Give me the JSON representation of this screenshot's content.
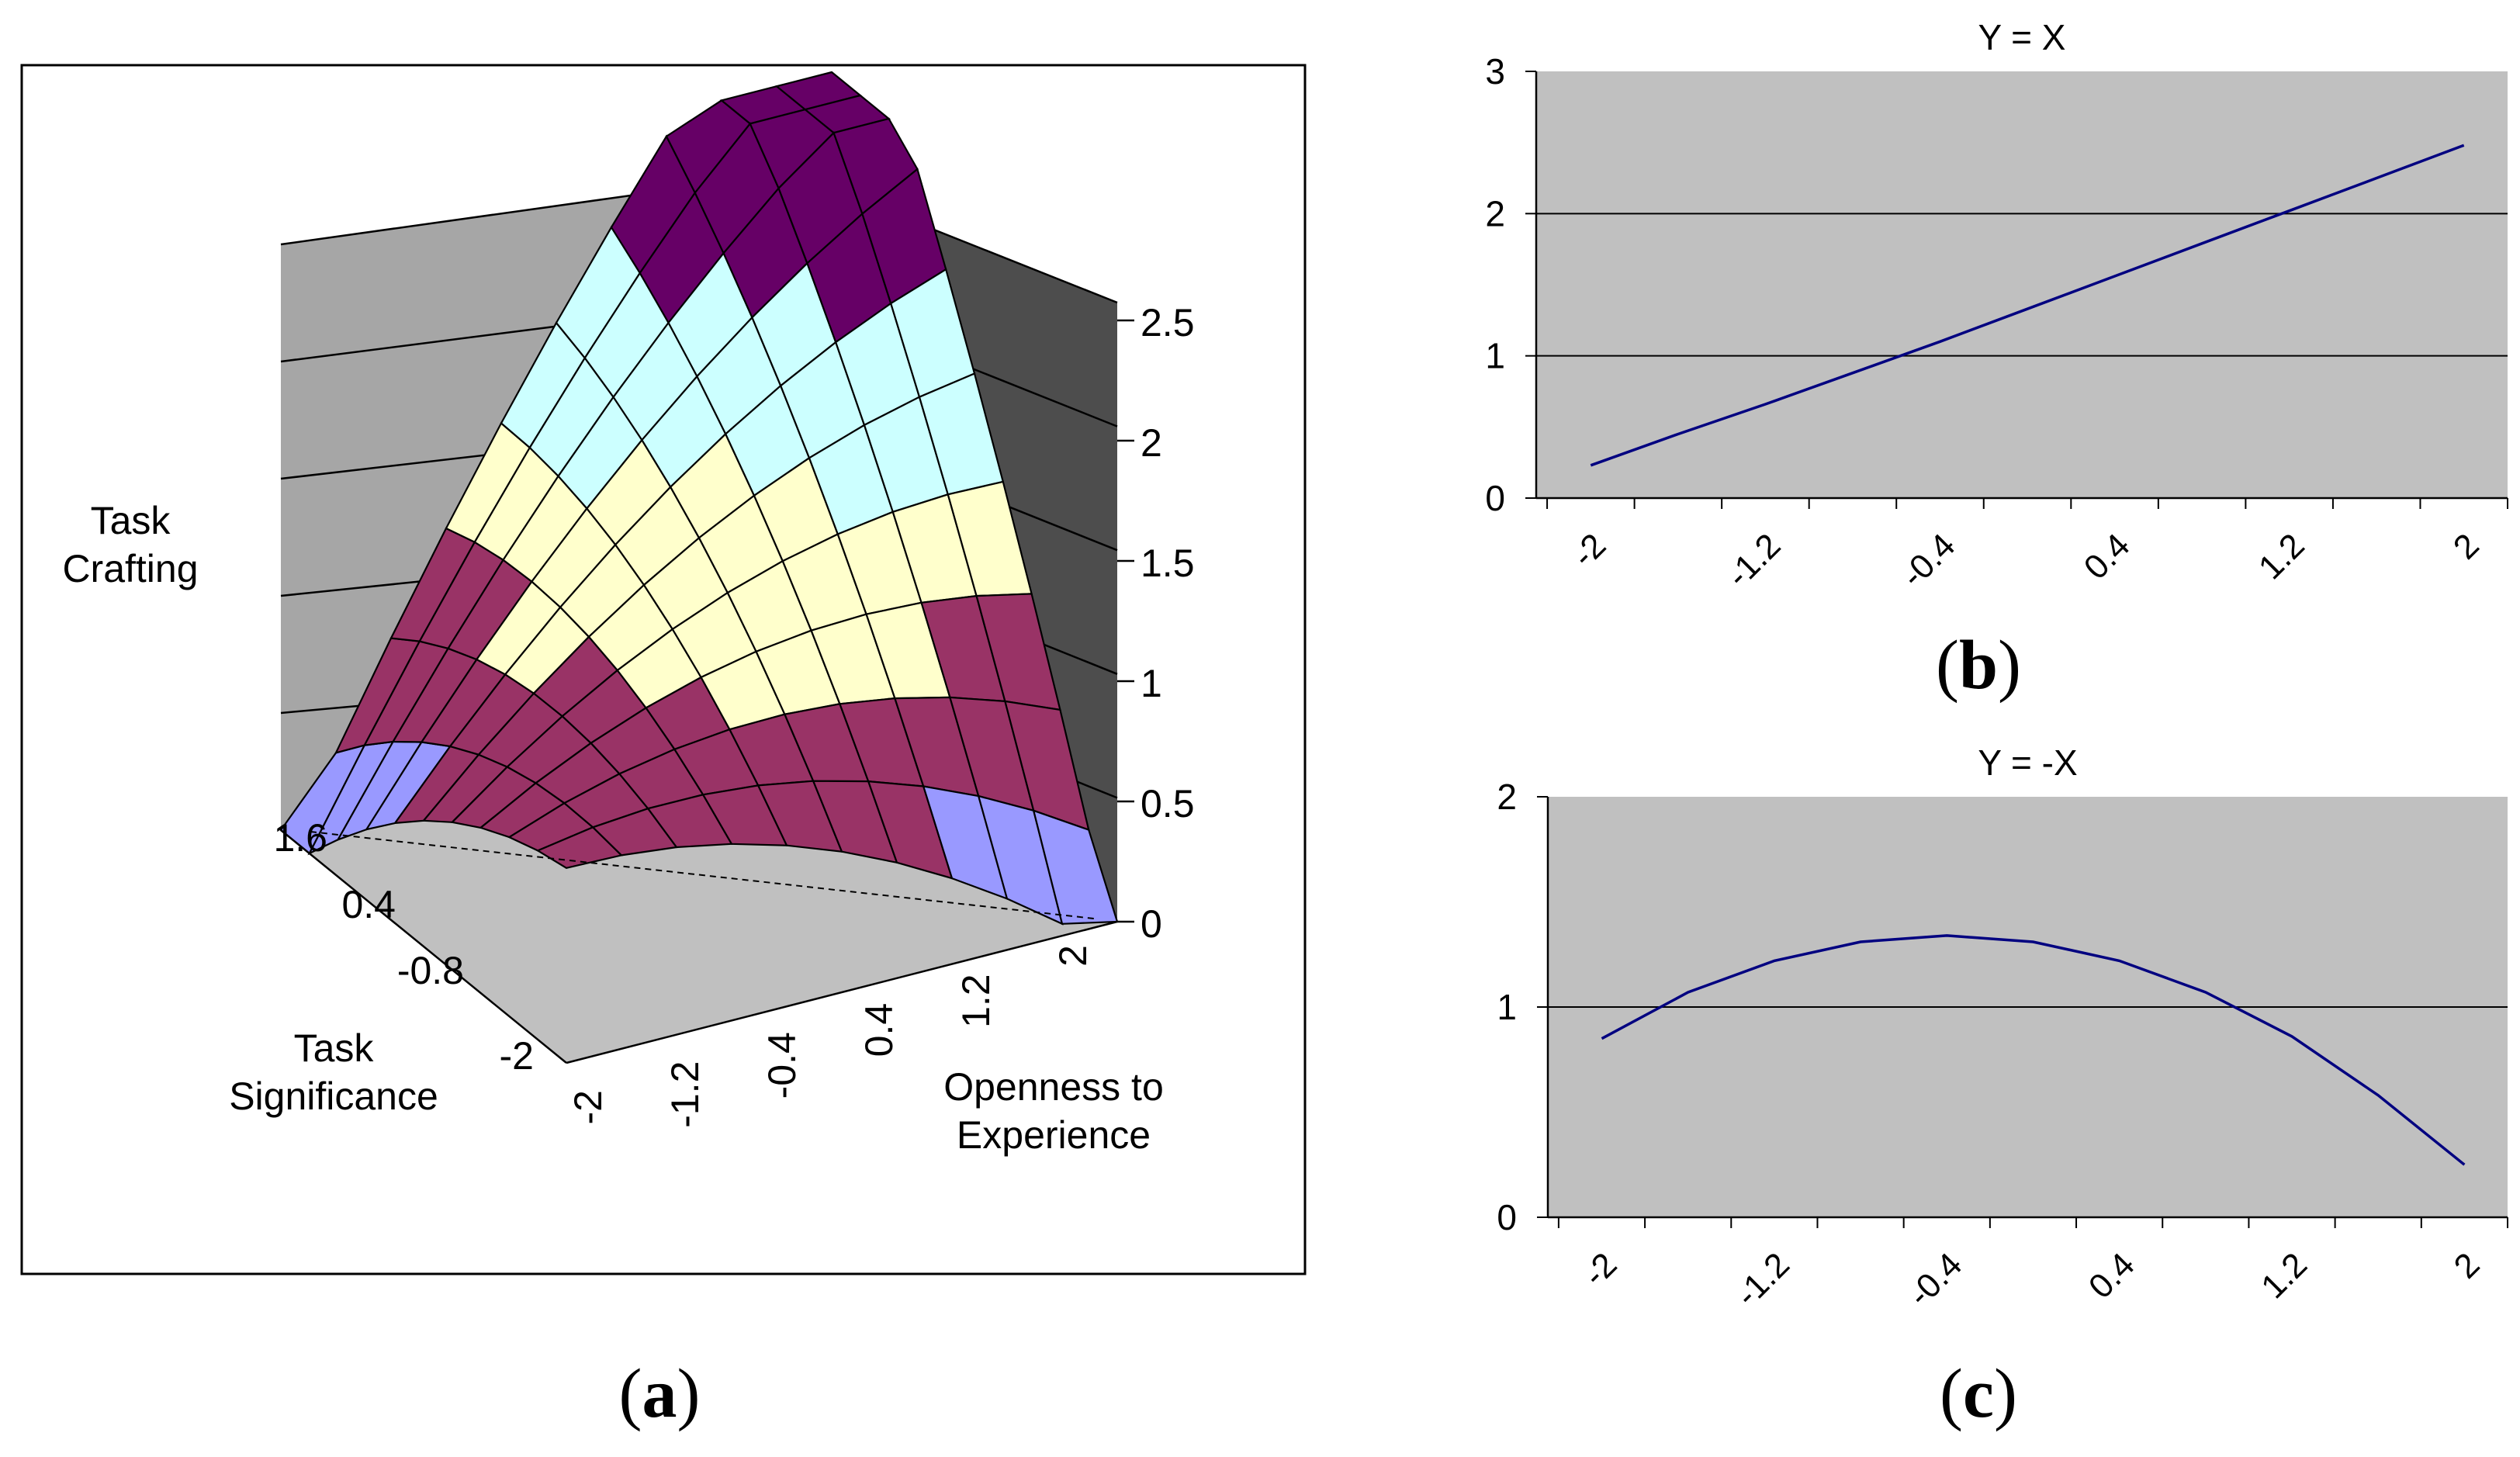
{
  "panels": {
    "a_label": "a",
    "b_label": "b",
    "c_label": "c"
  },
  "chart_data": [
    {
      "type": "surface",
      "id": "a",
      "title": "",
      "zlabel_lines": [
        "Task",
        "Crafting"
      ],
      "ylabel_lines": [
        "Task",
        "Significance"
      ],
      "xlabel_lines": [
        "Openness to",
        "Experience"
      ],
      "z_ticks": [
        "0",
        "0.5",
        "1",
        "1.5",
        "2",
        "2.5"
      ],
      "zlim": [
        0,
        2.5
      ],
      "x_ticks": [
        "-2",
        "-1.2",
        "-0.4",
        "0.4",
        "1.2",
        "2"
      ],
      "y_ticks": [
        "-2",
        "-0.8",
        "0.4",
        "1.6"
      ],
      "xlim": [
        -2,
        2
      ],
      "ylim": [
        -2,
        2
      ],
      "color_bands": [
        {
          "range": [
            0,
            0.5
          ],
          "color": "#9999ff"
        },
        {
          "range": [
            0.5,
            1
          ],
          "color": "#993366"
        },
        {
          "range": [
            1,
            1.5
          ],
          "color": "#ffffcc"
        },
        {
          "range": [
            1.5,
            2
          ],
          "color": "#ccffff"
        },
        {
          "range": [
            2,
            2.5
          ],
          "color": "#660066"
        }
      ],
      "corners": {
        "x_-2_y_-2": 0.05,
        "x_-2_y_2": 1.2,
        "x_2_y_2": 2.5,
        "x_2_y_-2": 0.55
      }
    },
    {
      "type": "line",
      "id": "b",
      "title": "Y = X",
      "x": [
        -2,
        -1.6,
        -1.2,
        -0.8,
        -0.4,
        0,
        0.4,
        0.8,
        1.2,
        1.6,
        2
      ],
      "x_tick_labels": [
        "-2",
        "-1.2",
        "-0.4",
        "0.4",
        "1.2",
        "2"
      ],
      "values": [
        0.23,
        0.45,
        0.66,
        0.88,
        1.1,
        1.33,
        1.56,
        1.79,
        2.02,
        2.25,
        2.48
      ],
      "ylim": [
        0,
        3
      ],
      "y_ticks": [
        "0",
        "1",
        "2",
        "3"
      ],
      "grid": true,
      "line_color": "#000080",
      "plot_bg": "#c0c0c0"
    },
    {
      "type": "line",
      "id": "c",
      "title": "Y = -X",
      "x": [
        -2,
        -1.6,
        -1.2,
        -0.8,
        -0.4,
        0,
        0.4,
        0.8,
        1.2,
        1.6,
        2
      ],
      "x_tick_labels": [
        "-2",
        "-1.2",
        "-0.4",
        "0.4",
        "1.2",
        "2"
      ],
      "values": [
        0.85,
        1.07,
        1.22,
        1.31,
        1.34,
        1.31,
        1.22,
        1.07,
        0.86,
        0.58,
        0.25
      ],
      "ylim": [
        0,
        2
      ],
      "y_ticks": [
        "0",
        "1",
        "2"
      ],
      "grid": true,
      "line_color": "#000080",
      "plot_bg": "#c0c0c0"
    }
  ]
}
